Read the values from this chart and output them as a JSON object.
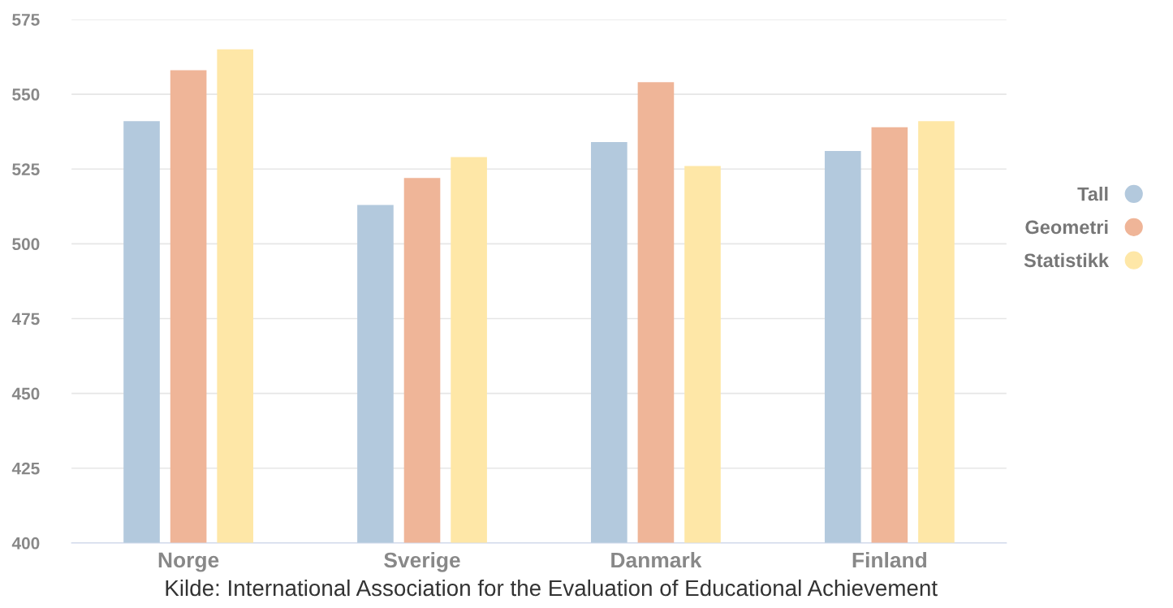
{
  "chart_data": {
    "type": "bar",
    "categories": [
      "Norge",
      "Sverige",
      "Danmark",
      "Finland"
    ],
    "series": [
      {
        "name": "Tall",
        "color": "#b3c9dd",
        "values": [
          541,
          513,
          534,
          531
        ]
      },
      {
        "name": "Geometri",
        "color": "#efb598",
        "values": [
          558,
          522,
          554,
          539
        ]
      },
      {
        "name": "Statistikk",
        "color": "#fee7a7",
        "values": [
          565,
          529,
          526,
          541
        ]
      }
    ],
    "ylim": [
      400,
      575
    ],
    "yticks": [
      400,
      425,
      450,
      475,
      500,
      525,
      550,
      575
    ],
    "grid": "y",
    "legend": "right",
    "annotations": [
      "Kilde: International Association for the Evaluation of Educational Achievement"
    ]
  }
}
